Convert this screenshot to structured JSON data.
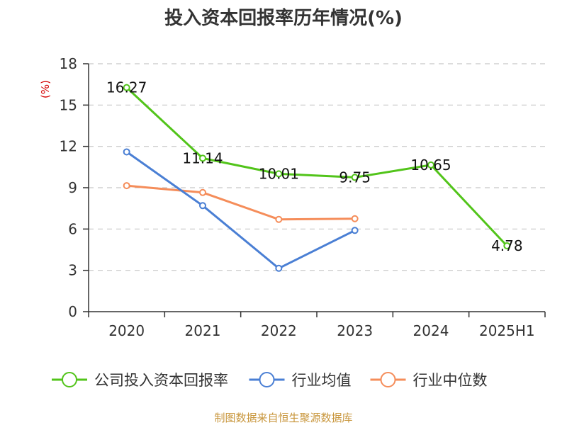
{
  "chart_data": {
    "type": "line",
    "title": "投入资本回报率历年情况(%)",
    "ylabel": "(%)",
    "categories": [
      "2020",
      "2021",
      "2022",
      "2023",
      "2024",
      "2025H1"
    ],
    "ylim": [
      0,
      18
    ],
    "yticks": [
      "0",
      "3",
      "6",
      "9",
      "12",
      "15",
      "18"
    ],
    "grid": true,
    "legend_position": "bottom",
    "series": [
      {
        "name": "公司投入资本回报率",
        "color": "#52c41a",
        "values": [
          16.27,
          11.14,
          10.01,
          9.75,
          10.65,
          4.78
        ],
        "labels": [
          "16.27",
          "11.14",
          "10.01",
          "9.75",
          "10.65",
          "4.78"
        ]
      },
      {
        "name": "行业均值",
        "color": "#4a7fd4",
        "values": [
          11.6,
          7.7,
          3.15,
          5.9,
          null,
          null
        ]
      },
      {
        "name": "行业中位数",
        "color": "#f58d5a",
        "values": [
          9.15,
          8.65,
          6.7,
          6.75,
          null,
          null
        ]
      }
    ]
  },
  "source": "制图数据来自恒生聚源数据库"
}
